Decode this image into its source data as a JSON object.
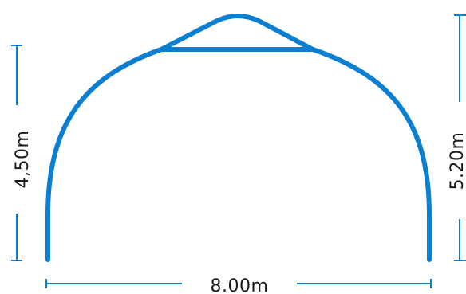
{
  "dimensions": {
    "width_label": "8.00m",
    "side_height_label": "4,50m",
    "peak_height_label": "5.20m"
  },
  "colors": {
    "frame": "#0b7fd1",
    "dimension_line": "#0b7fd1",
    "text": "#1a1a1a"
  }
}
